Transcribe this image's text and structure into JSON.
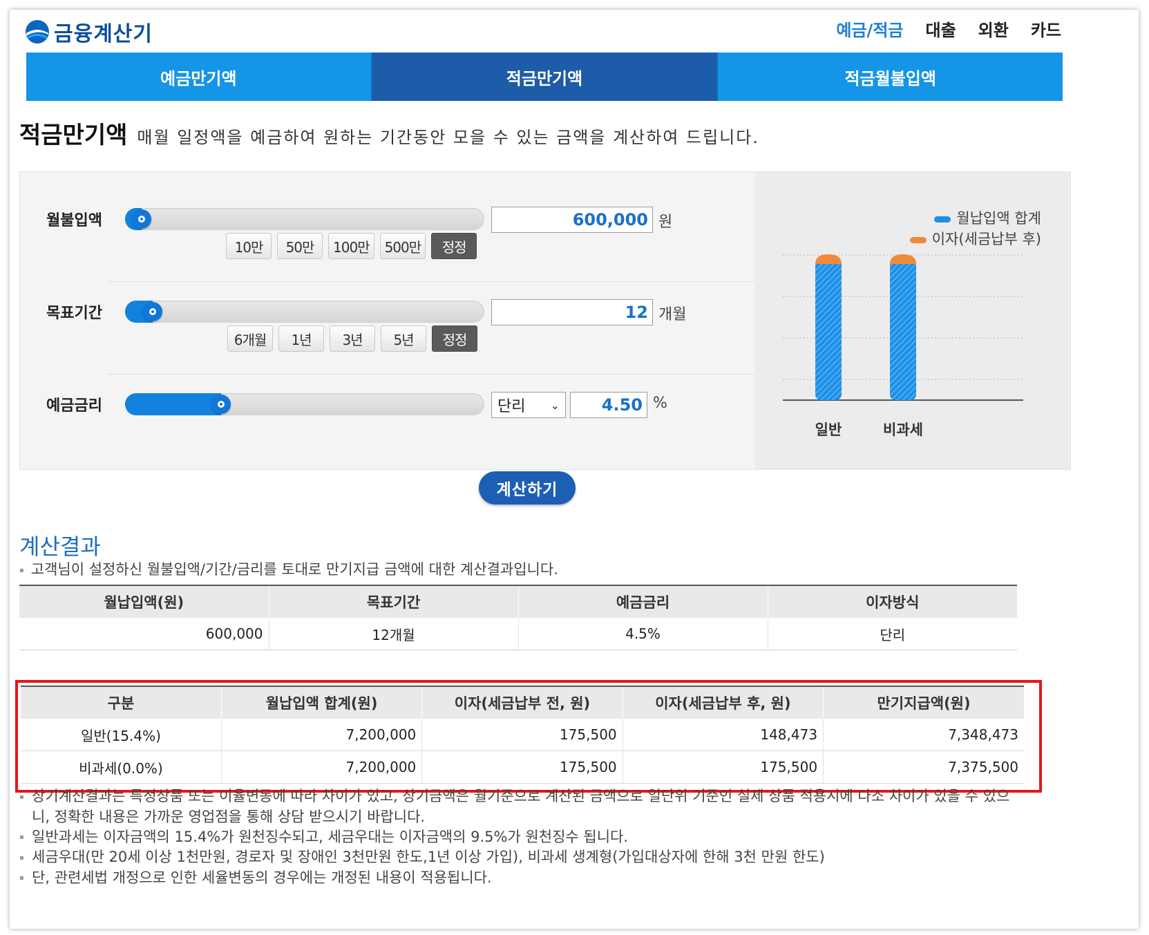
{
  "logo": {
    "text": "금융계산기"
  },
  "topnav": [
    "예금/적금",
    "대출",
    "외환",
    "카드"
  ],
  "tabs": [
    "예금만기액",
    "적금만기액",
    "적금월불입액"
  ],
  "heading": {
    "title": "적금만기액",
    "desc": "매월 일정액을 예금하여 원하는 기간동안 모을 수 있는 금액을 계산하여 드립니다."
  },
  "form": {
    "monthly": {
      "label": "월불입액",
      "value": "600,000",
      "unit": "원",
      "buttons": [
        "10만",
        "50만",
        "100만",
        "500만",
        "정정"
      ],
      "slider_level": 0.02
    },
    "period": {
      "label": "목표기간",
      "value": "12",
      "unit": "개월",
      "buttons": [
        "6개월",
        "1년",
        "3년",
        "5년",
        "정정"
      ],
      "slider_level": 0.05
    },
    "rate": {
      "label": "예금금리",
      "type": "단리",
      "value": "4.50",
      "unit": "%",
      "slider_level": 0.24
    }
  },
  "chart_data": {
    "type": "bar",
    "categories": [
      "일반",
      "비과세"
    ],
    "series": [
      {
        "name": "월납입액 합계",
        "values": [
          7200000,
          7200000
        ],
        "color": "#1e90e8"
      },
      {
        "name": "이자(세금납부 후)",
        "values": [
          148473,
          175500
        ],
        "color": "#f08a3a"
      }
    ],
    "stacked": true,
    "grid": true,
    "legend": "top-right"
  },
  "calc_button": "계산하기",
  "result": {
    "title": "계산결과",
    "intro": "고객님이 설정하신 월불입액/기간/금리를 토대로 만기지급 금액에 대한 계산결과입니다.",
    "summary": {
      "headers": [
        "월납입액(원)",
        "목표기간",
        "예금금리",
        "이자방식"
      ],
      "row": [
        "600,000",
        "12개월",
        "4.5%",
        "단리"
      ]
    },
    "detail": {
      "headers": [
        "구분",
        "월납입액 합계(원)",
        "이자(세금납부 전, 원)",
        "이자(세금납부 후, 원)",
        "만기지급액(원)"
      ],
      "rows": [
        [
          "일반(15.4%)",
          "7,200,000",
          "175,500",
          "148,473",
          "7,348,473"
        ],
        [
          "비과세(0.0%)",
          "7,200,000",
          "175,500",
          "175,500",
          "7,375,500"
        ]
      ]
    },
    "notes": [
      "상기계산결과는 특정상품 또는 이율변동에 따라 차이가 있고, 상기금액은 월기준으로 계산된 금액으로 일단위 기준인 실제 상품 적용시에 다소 차이가 있을 수 있으니, 정확한 내용은 가까운 영업점을 통해 상담 받으시기 바랍니다.",
      "일반과세는 이자금액의 15.4%가 원천징수되고, 세금우대는 이자금액의 9.5%가 원천징수 됩니다.",
      "세금우대(만 20세 이상 1천만원, 경로자 및 장애인 3천만원 한도,1년 이상 가입), 비과세 생계형(가입대상자에 한해 3천 만원 한도)",
      "단, 관련세법 개정으로 인한 세율변동의 경우에는 개정된 내용이 적용됩니다."
    ]
  }
}
